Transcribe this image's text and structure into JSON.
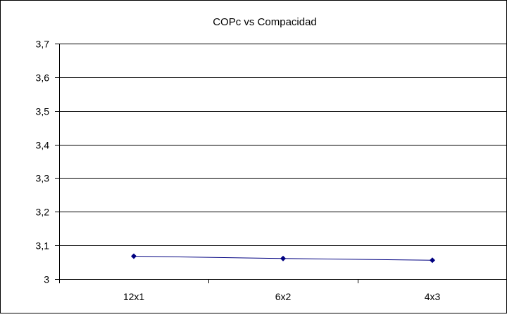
{
  "chart_data": {
    "type": "line",
    "title": "COPc vs Compacidad",
    "xlabel": "",
    "ylabel": "",
    "categories": [
      "12x1",
      "6x2",
      "4x3"
    ],
    "series": [
      {
        "values": [
          3.068,
          3.061,
          3.056
        ],
        "color": "#000080",
        "marker": "diamond"
      }
    ],
    "ylim": [
      3.0,
      3.7
    ],
    "yticks": [
      3.0,
      3.1,
      3.2,
      3.3,
      3.4,
      3.5,
      3.6,
      3.7
    ],
    "ytick_labels": [
      "3",
      "3,1",
      "3,2",
      "3,3",
      "3,4",
      "3,5",
      "3,6",
      "3,7"
    ],
    "grid": "horizontal",
    "legend": "none"
  }
}
